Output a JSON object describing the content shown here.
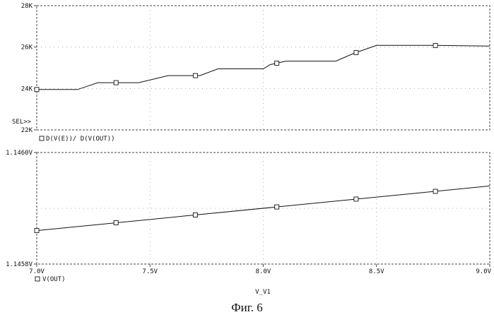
{
  "figure_caption": "Фиг. 6",
  "chart_data": [
    {
      "type": "line",
      "plot": "top",
      "y_ticks": [
        "28K",
        "26K",
        "24K",
        "22K"
      ],
      "ylim": [
        22000,
        28000
      ],
      "xlim": [
        7.0,
        9.0
      ],
      "sel_marker": "SEL>>",
      "legend": "D(V(E))/ D(V(OUT))",
      "grid": "dotted",
      "series": [
        {
          "name": "D(V(E))/ D(V(OUT))",
          "x": [
            7.0,
            7.18,
            7.27,
            7.45,
            7.58,
            7.72,
            7.8,
            8.0,
            8.03,
            8.1,
            8.32,
            8.4,
            8.5,
            8.75,
            9.0
          ],
          "y": [
            23950,
            23950,
            24280,
            24280,
            24620,
            24620,
            24950,
            24950,
            25150,
            25320,
            25320,
            25700,
            26080,
            26080,
            26050
          ],
          "markers_x": [
            7.0,
            7.35,
            7.7,
            8.06,
            8.41,
            8.76
          ]
        }
      ]
    },
    {
      "type": "line",
      "plot": "bottom",
      "y_ticks": [
        "1.1460V",
        "1.1458V"
      ],
      "ylim": [
        1.1458,
        1.146
      ],
      "xlim": [
        7.0,
        9.0
      ],
      "x_ticks": [
        "7.0V",
        "7.5V",
        "8.0V",
        "8.5V",
        "9.0V"
      ],
      "x_tick_values": [
        7.0,
        7.5,
        8.0,
        8.5,
        9.0
      ],
      "legend": "V(OUT)",
      "xlabel": "V_V1",
      "grid": "dotted",
      "series": [
        {
          "name": "V(OUT)",
          "x": [
            7.0,
            9.0
          ],
          "y": [
            1.14586,
            1.14594
          ],
          "markers_x": [
            7.0,
            7.35,
            7.7,
            8.06,
            8.41,
            8.76
          ]
        }
      ]
    }
  ]
}
